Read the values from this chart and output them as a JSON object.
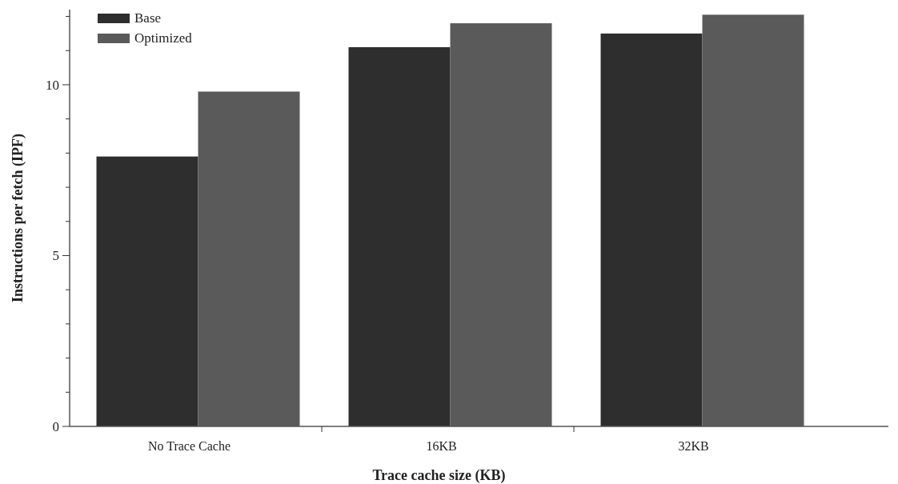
{
  "chart_data": {
    "type": "bar",
    "xlabel": "Trace cache size (KB)",
    "ylabel": "Instructions per fetch (IPF)",
    "categories": [
      "No Trace Cache",
      "16KB",
      "32KB"
    ],
    "series": [
      {
        "name": "Base",
        "color": "#2e2e2e",
        "values": [
          7.9,
          11.1,
          11.5
        ]
      },
      {
        "name": "Optimized",
        "color": "#5a5a5a",
        "values": [
          9.8,
          11.8,
          12.05
        ]
      }
    ],
    "ylim": [
      0,
      12.2
    ],
    "yticks": [
      0,
      {
        "value": 1,
        "label": null
      },
      {
        "value": 2,
        "label": null
      },
      {
        "value": 3,
        "label": null
      },
      {
        "value": 4,
        "label": null
      },
      5,
      {
        "value": 6,
        "label": null
      },
      {
        "value": 7,
        "label": null
      },
      {
        "value": 8,
        "label": null
      },
      {
        "value": 9,
        "label": null
      },
      10,
      {
        "value": 11,
        "label": null
      },
      {
        "value": 12,
        "label": null
      }
    ],
    "legend": "top left",
    "grid": false
  }
}
